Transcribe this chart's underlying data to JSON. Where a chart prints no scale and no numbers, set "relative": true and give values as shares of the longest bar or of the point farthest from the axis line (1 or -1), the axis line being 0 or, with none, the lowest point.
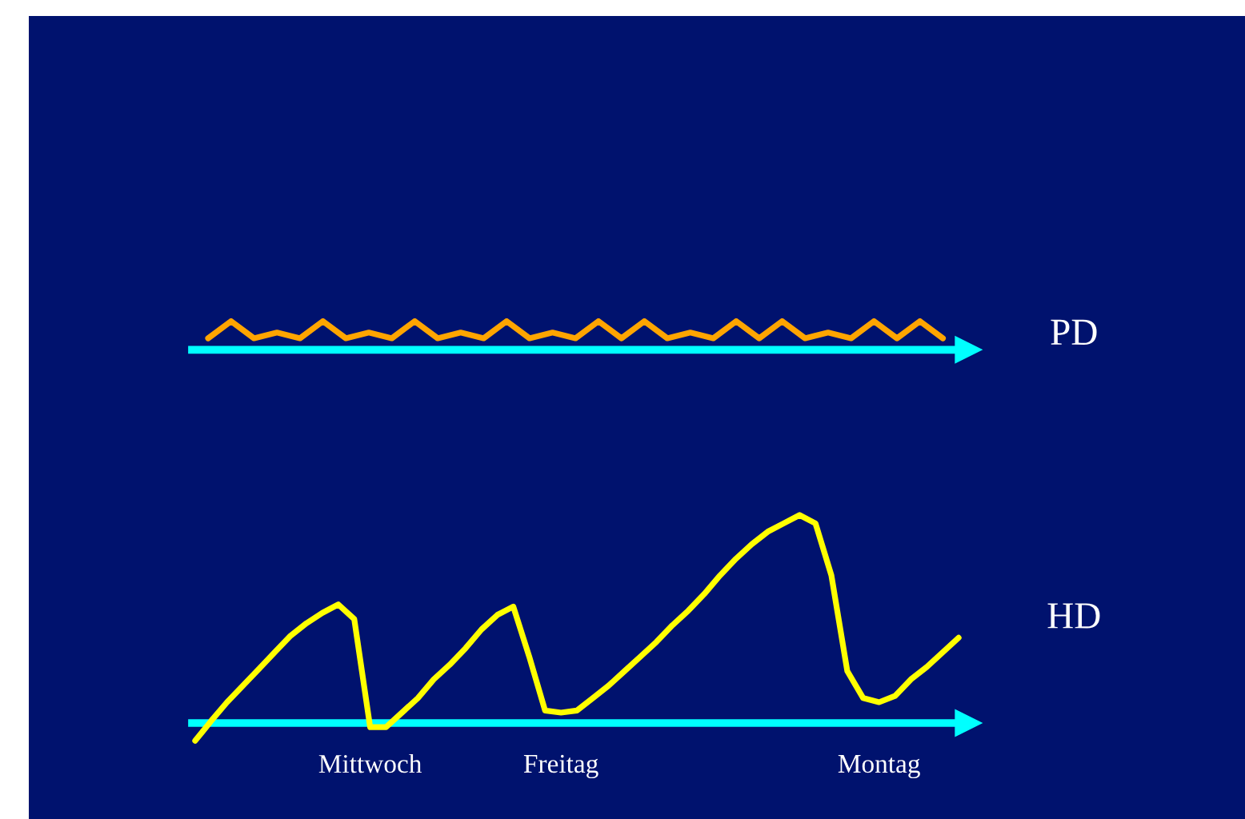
{
  "chart_data": [
    {
      "type": "line",
      "relative": true,
      "categories": [
        null,
        null,
        null,
        null,
        null,
        null,
        null,
        null,
        null,
        null,
        null,
        null,
        null,
        null,
        null,
        null,
        null,
        null,
        null,
        null,
        null,
        null,
        null,
        null,
        null,
        null,
        null,
        null,
        null,
        null,
        null,
        null,
        null
      ],
      "series": [
        {
          "name": "PD",
          "color": "#ffa500",
          "values": [
            0.4,
            1,
            0.4,
            0.6,
            0.4,
            1,
            0.4,
            0.6,
            0.4,
            1,
            0.4,
            0.6,
            0.4,
            1,
            0.4,
            0.6,
            0.4,
            1,
            0.4,
            1,
            0.4,
            0.6,
            0.4,
            1,
            0.4,
            1,
            0.4,
            0.6,
            0.4,
            1,
            0.4,
            1,
            0.4
          ]
        }
      ]
    },
    {
      "type": "line",
      "relative": true,
      "categories": [
        null,
        null,
        null,
        null,
        null,
        null,
        null,
        null,
        null,
        null,
        null,
        "Mittwoch",
        null,
        null,
        null,
        null,
        null,
        null,
        null,
        null,
        null,
        null,
        null,
        "Freitag",
        null,
        null,
        null,
        null,
        null,
        null,
        null,
        null,
        null,
        null,
        null,
        null,
        null,
        null,
        null,
        null,
        null,
        null,
        null,
        "Montag",
        null,
        null,
        null,
        null,
        null
      ],
      "series": [
        {
          "name": "HD",
          "color": "#ffff00",
          "values": [
            -0.085,
            0.01,
            0.1,
            0.18,
            0.26,
            0.34,
            0.42,
            0.48,
            0.53,
            0.57,
            0.5,
            -0.02,
            -0.02,
            0.05,
            0.12,
            0.21,
            0.28,
            0.36,
            0.45,
            0.52,
            0.56,
            0.32,
            0.06,
            0.05,
            0.06,
            0.12,
            0.18,
            0.25,
            0.32,
            0.39,
            0.47,
            0.54,
            0.62,
            0.71,
            0.79,
            0.86,
            0.92,
            0.96,
            1.0,
            0.96,
            0.71,
            0.25,
            0.12,
            0.1,
            0.13,
            0.21,
            0.27,
            0.34,
            0.41
          ]
        }
      ]
    }
  ]
}
